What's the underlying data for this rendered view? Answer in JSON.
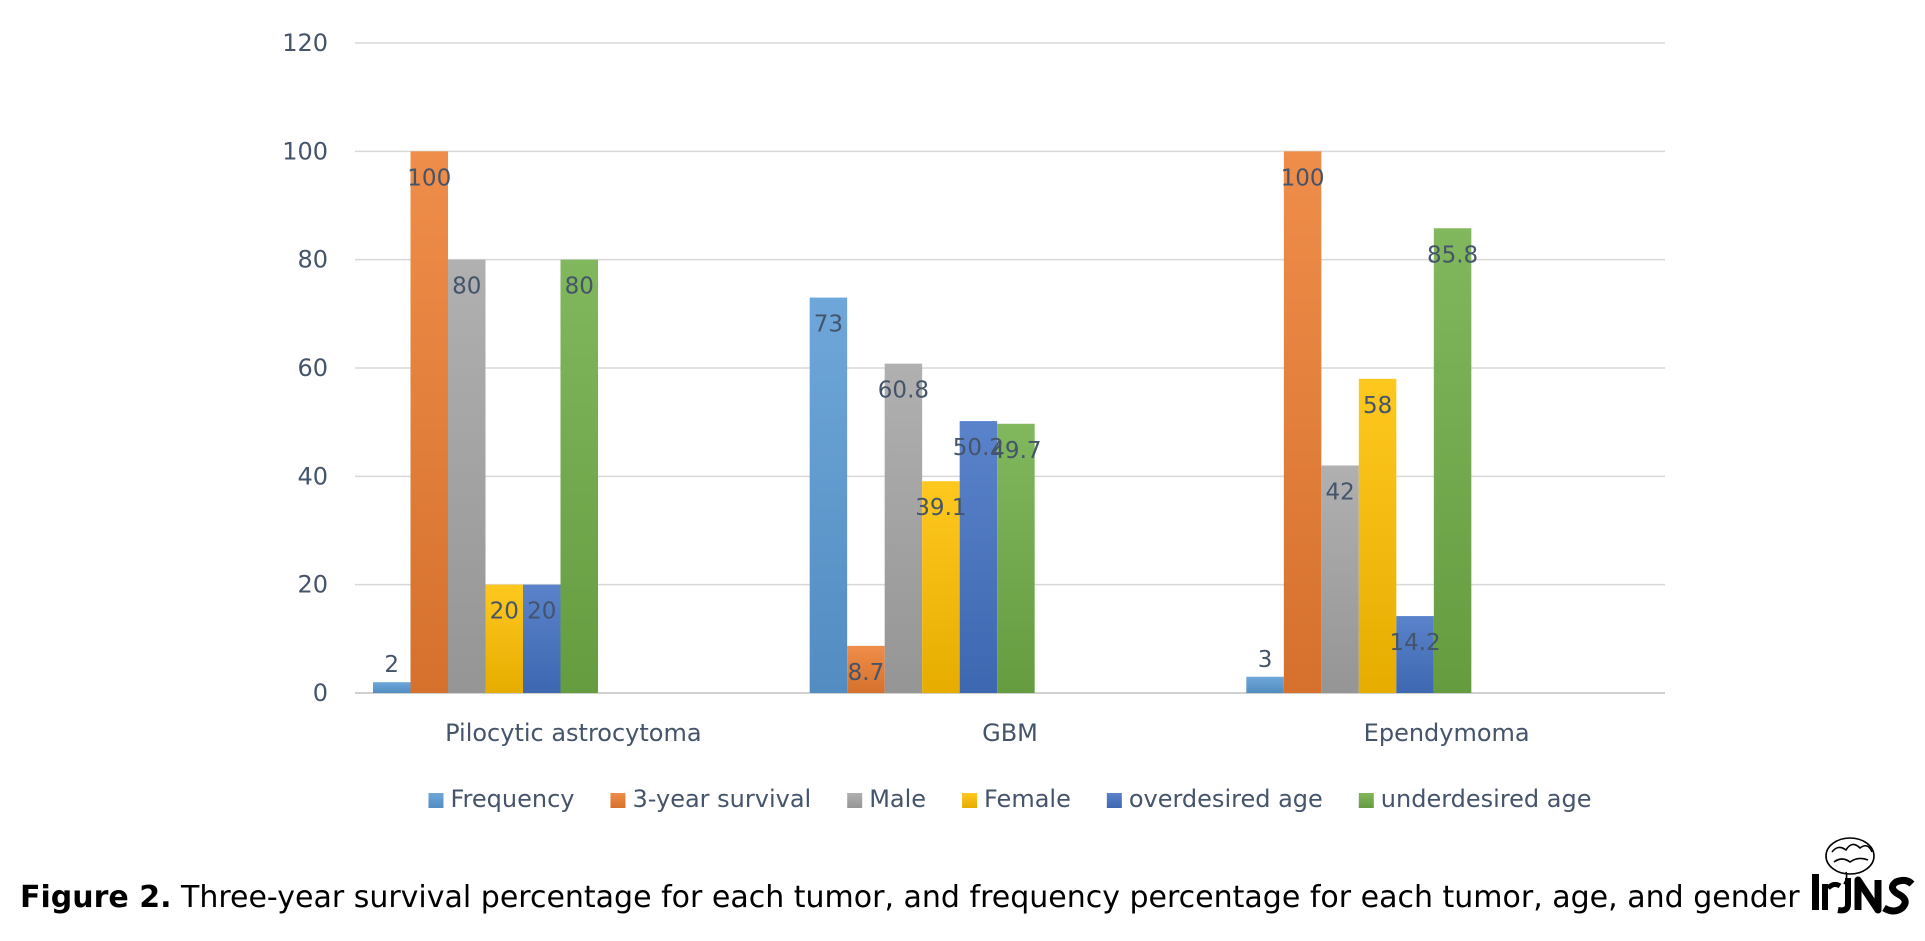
{
  "chart_data": {
    "type": "bar",
    "categories": [
      "Pilocytic astrocytoma",
      "GBM",
      "Ependymoma"
    ],
    "series": [
      {
        "name": "Frequency",
        "values": [
          2,
          73,
          3
        ],
        "color": "#5b9bd5"
      },
      {
        "name": "3-year survival",
        "values": [
          100,
          8.7,
          100
        ],
        "color": "#ed7d31"
      },
      {
        "name": "Male",
        "values": [
          80,
          60.8,
          42
        ],
        "color": "#a5a5a5"
      },
      {
        "name": "Female",
        "values": [
          20,
          39.1,
          58
        ],
        "color": "#ffc000"
      },
      {
        "name": "overdesired age",
        "values": [
          20,
          50.2,
          14.2
        ],
        "color": "#4472c4"
      },
      {
        "name": "underdesired age",
        "values": [
          80,
          49.7,
          85.8
        ],
        "color": "#70ad47"
      }
    ],
    "ylim": [
      0,
      120
    ],
    "yticks": [
      0,
      20,
      40,
      60,
      80,
      100,
      120
    ],
    "grid": true,
    "legend_position": "bottom",
    "data_labels": true
  },
  "caption": {
    "label": "Figure 2.",
    "text": " Three-year survival percentage for each tumor, and frequency percentage for each tumor, age, and gender"
  },
  "logo": {
    "text": "IrJNS",
    "icon": "brain-icon"
  }
}
